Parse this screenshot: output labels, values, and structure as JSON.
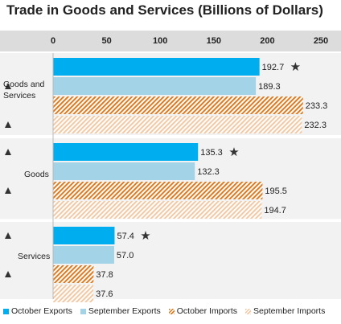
{
  "chart_data": {
    "type": "bar",
    "orientation": "horizontal",
    "title": "Trade in Goods and Services (Billions of Dollars)",
    "categories": [
      "Goods and Services",
      "Goods",
      "Services"
    ],
    "category_lines": [
      [
        "Goods and",
        "Services"
      ],
      [
        "Goods"
      ],
      [
        "Services"
      ]
    ],
    "series": [
      {
        "name": "October Exports",
        "values": [
          192.7,
          135.3,
          57.4
        ],
        "color": "#00aeef",
        "pattern": "solid",
        "labels": [
          "192.7",
          "135.3",
          "57.4"
        ]
      },
      {
        "name": "September Exports",
        "values": [
          189.3,
          132.3,
          57.0
        ],
        "color": "#a3d3e6",
        "pattern": "solid",
        "labels": [
          "189.3",
          "132.3",
          "57.0"
        ]
      },
      {
        "name": "October Imports",
        "values": [
          233.3,
          195.5,
          37.8
        ],
        "color": "#e07a1f",
        "pattern": "hatch",
        "labels": [
          "233.3",
          "195.5",
          "37.8"
        ]
      },
      {
        "name": "September Imports",
        "values": [
          232.3,
          194.7,
          37.6
        ],
        "color": "#f2c9a4",
        "pattern": "hatch",
        "labels": [
          "232.3",
          "194.7",
          "37.6"
        ]
      }
    ],
    "xlim": [
      0,
      250
    ],
    "ticks": [
      0,
      50,
      100,
      150,
      200,
      250
    ],
    "tick_labels": [
      "0",
      "50",
      "100",
      "150",
      "200",
      "250"
    ],
    "axis_position": "top",
    "grid": false,
    "legend_position": "bottom",
    "marked_series": "October Exports",
    "star_symbol": "★",
    "triangle_symbol": "▲"
  }
}
